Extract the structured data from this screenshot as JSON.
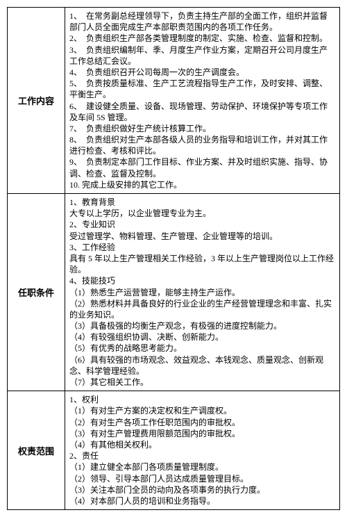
{
  "sections": [
    {
      "label": "工作内容",
      "items": [
        "1、　在常务副总经理领导下，负责主持生产部的全面工作，组织并监督部门人员全面完成生产本部职责范围内的各项工作任务。",
        "2、　负责组织生产部各类管理制度的制定、实施、检查、监督和控制。",
        "3、　负责组织编制年、季、月度生产作业方案，定期召开公司月度生产工作总结汇会议。",
        "4、　负责组织召开公司每周一次的生产调度会。",
        "5、　负责按质量标准、生产工艺流程指导生产工作，及时安排、调整、平衡生产。",
        "6、　建设健全质量、设备、现场管理、劳动保护、环境保护等专项工作及车间 5S 管理。",
        "7、　负责组织做好生产统计核算工作。",
        "8、　负责组织对生产本部各级人员的业务指导和培训工作，并对其工作进行检查、考核和评比。",
        "9、　负责制定本部门工作目标、作业方案、并及时组织实施、指导、协调、检查、监督及控制。",
        "10. 完成上级安排的其它工作。"
      ]
    },
    {
      "label": "任职条件",
      "items": [
        "1、教育背景",
        "大专以上学历，以企业管理专业为主。",
        "2、专业知识",
        "受过管理学、物料管理、生产管理、企业管理等的培训。",
        "3、工作经验",
        "具有 5 年以上生产管理相关工作经验，3 年以上生产管理岗位以上工作经验。",
        "4、技能技巧",
        "（1）熟悉生产运营管理，能够主持生产运作。",
        "（2）熟悉材料并具备良好的行业企业的生产经营管理理念和丰富、扎实的业务知识。",
        "（3）具备极强的均衡生产观念，有极强的进度控制能力。",
        "（4）有较强组织协调、决断、创新能力。",
        "（5）有优秀的战略思考能力。",
        "（6）具有较强的市场观念、效益观念、本钱观念、质量观念、创新观念、科学管理经验。",
        "（7）其它相关工作。"
      ]
    },
    {
      "label": "权责范围",
      "items": [
        "1、权利",
        "（1）有对生产方案的决定权和生产调度权。",
        "（2）有对生产各项工作任职范围内的审批权。",
        "（3）有对生产管理费用限额范围内的审批权。",
        "（4）有其他相关权利。",
        "2、责任",
        "（1）建立健全本部门各项质量管理制度。",
        "（2）领导、引导本部门人员达成质量管理目标。",
        "（3）关注本部门全员的动向及各项事务的执行力度。",
        "（4）对本部门人员的培训和业务指导。"
      ]
    }
  ]
}
